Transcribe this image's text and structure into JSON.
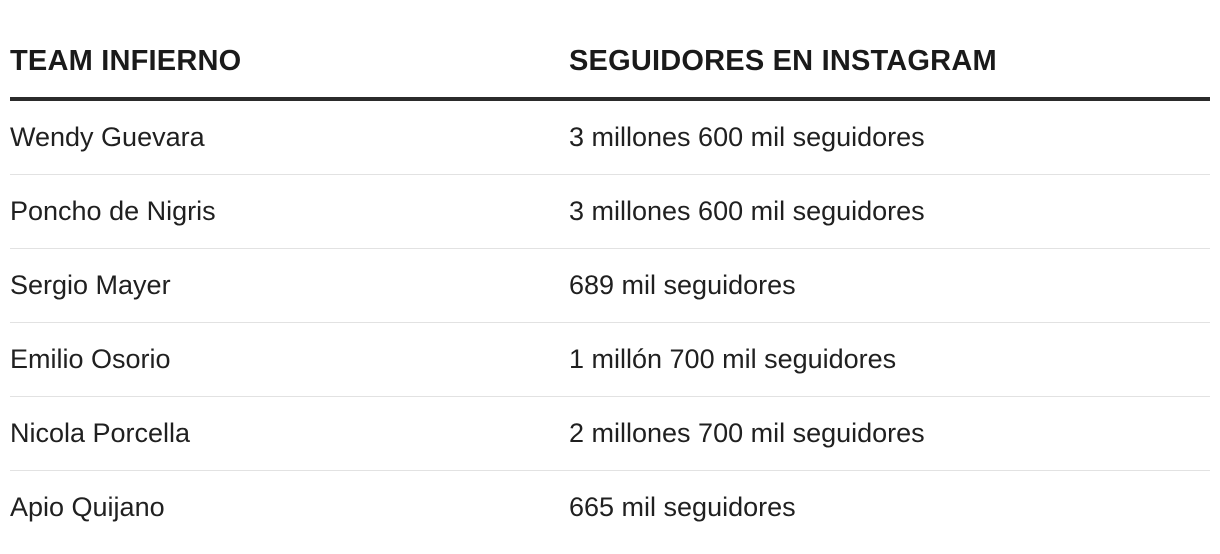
{
  "table": {
    "headers": [
      "TEAM INFIERNO",
      "SEGUIDORES EN INSTAGRAM"
    ],
    "rows": [
      [
        "Wendy Guevara",
        "3 millones 600 mil seguidores"
      ],
      [
        "Poncho de Nigris",
        "3 millones 600 mil seguidores"
      ],
      [
        "Sergio Mayer",
        "689 mil seguidores"
      ],
      [
        "Emilio Osorio",
        "1 millón 700 mil seguidores"
      ],
      [
        "Nicola Porcella",
        "2 millones 700 mil seguidores"
      ],
      [
        "Apio Quijano",
        "665 mil seguidores"
      ]
    ]
  }
}
